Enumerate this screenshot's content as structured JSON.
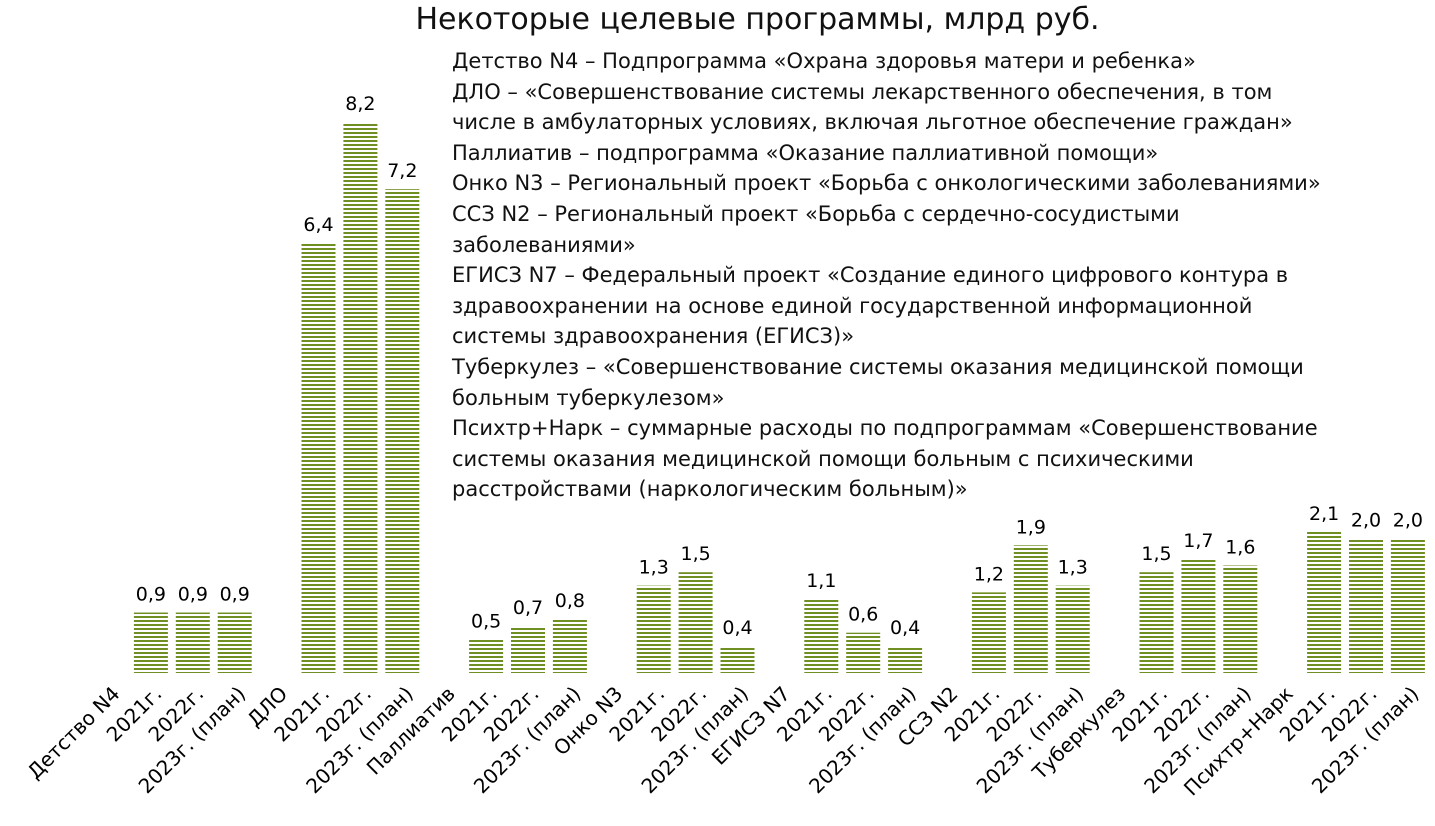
{
  "chart_data": {
    "type": "bar",
    "title": "Некоторые целевые программы, млрд руб.",
    "xlabel": "",
    "ylabel": "",
    "ylim": [
      0,
      8.2
    ],
    "grid": false,
    "bar_color": "#6f8f22",
    "categories": [
      "Детство N4",
      "2021г.",
      "2022г.",
      "2023г. (план)",
      "ДЛО",
      "2021г.",
      "2022г.",
      "2023г. (план)",
      "Паллиатив",
      "2021г.",
      "2022г.",
      "2023г. (план)",
      "Онко N3",
      "2021г.",
      "2022г.",
      "2023г. (план)",
      "ЕГИСЗ N7",
      "2021г.",
      "2022г.",
      "2023г. (план)",
      "ССЗ N2",
      "2021г.",
      "2022г.",
      "2023г. (план)",
      "Туберкулез",
      "2021г.",
      "2022г.",
      "2023г. (план)",
      "Психтр+Нарк",
      "2021г.",
      "2022г.",
      "2023г. (план)"
    ],
    "values": [
      null,
      0.9,
      0.9,
      0.9,
      null,
      6.4,
      8.2,
      7.2,
      null,
      0.5,
      0.7,
      0.8,
      null,
      1.3,
      1.5,
      0.4,
      null,
      1.1,
      0.6,
      0.4,
      null,
      1.2,
      1.9,
      1.3,
      null,
      1.5,
      1.7,
      1.6,
      null,
      2.1,
      2.0,
      2.0
    ],
    "labels": [
      null,
      "0,9",
      "0,9",
      "0,9",
      null,
      "6,4",
      "8,2",
      "7,2",
      null,
      "0,5",
      "0,7",
      "0,8",
      null,
      "1,3",
      "1,5",
      "0,4",
      null,
      "1,1",
      "0,6",
      "0,4",
      null,
      "1,2",
      "1,9",
      "1,3",
      null,
      "1,5",
      "1,7",
      "1,6",
      null,
      "2,1",
      "2,0",
      "2,0"
    ],
    "annotations": [
      "Детство N4 – Подпрограмма «Охрана здоровья матери и ребенка»",
      "ДЛО – «Совершенствование системы лекарственного обеспечения, в том",
      "числе в амбулаторных условиях, включая льготное обеспечение граждан»",
      "Паллиатив – подпрограмма «Оказание паллиативной помощи»",
      "Онко N3 – Региональный проект «Борьба с онкологическими заболеваниями»",
      "ССЗ N2 – Региональный проект «Борьба с сердечно-сосудистыми",
      "заболеваниями»",
      "ЕГИСЗ N7 – Федеральный проект «Создание единого цифрового контура в",
      "здравоохранении на основе единой государственной информационной",
      "системы здравоохранения (ЕГИСЗ)»",
      "Туберкулез – «Совершенствование системы оказания медицинской помощи",
      "больным туберкулезом»",
      "Психтр+Нарк – суммарные расходы по подпрограммам «Совершенствование",
      "системы оказания медицинской помощи больным с психическими",
      "расстройствами (наркологическим больным)»"
    ]
  }
}
